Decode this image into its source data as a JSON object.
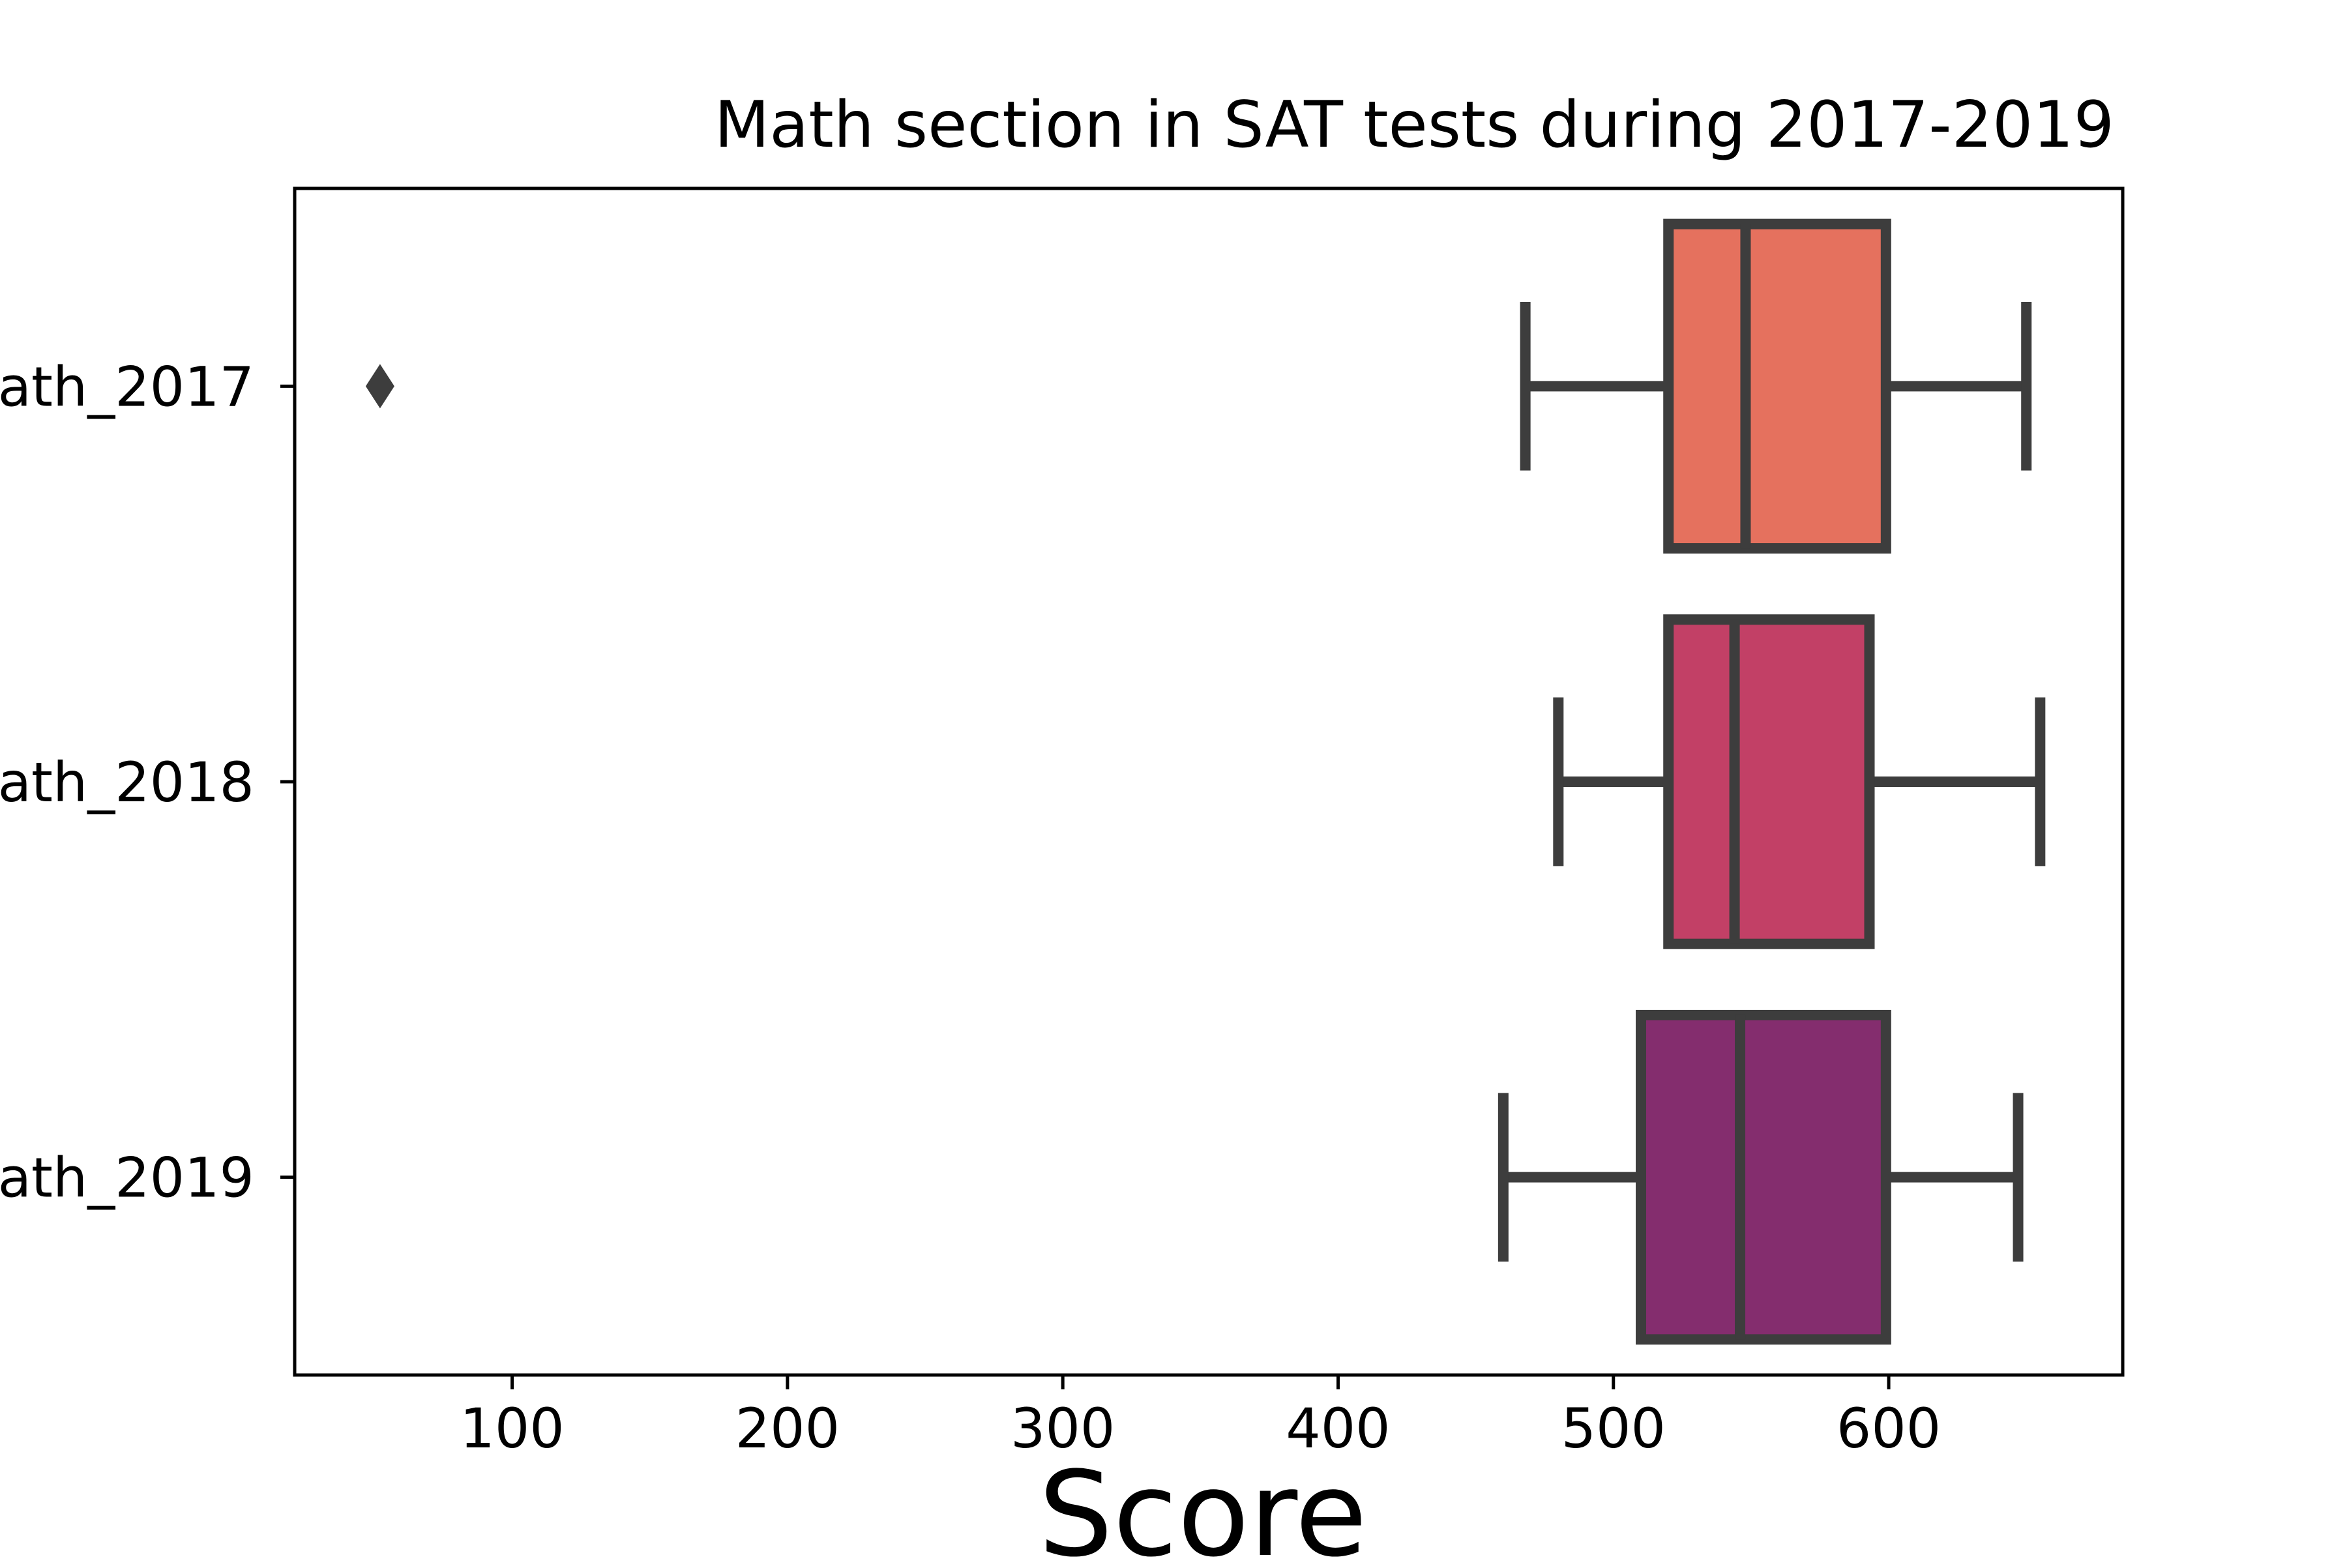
{
  "chart_data": {
    "type": "box",
    "orientation": "horizontal",
    "title": "Math section in SAT tests during 2017-2019",
    "xlabel": "Score",
    "ylabel": "",
    "xlim": [
      21,
      685
    ],
    "xticks": [
      100,
      200,
      300,
      400,
      500,
      600
    ],
    "grid": false,
    "legend": "none",
    "categories": [
      "ath_2017",
      "ath_2018",
      "ath_2019"
    ],
    "boxes": [
      {
        "label": "ath_2017",
        "whisker_low": 468,
        "q1": 520,
        "median": 548,
        "q3": 599,
        "whisker_high": 650,
        "outliers": [
          52
        ],
        "color": "#e5715e"
      },
      {
        "label": "ath_2018",
        "whisker_low": 480,
        "q1": 520,
        "median": 544,
        "q3": 593,
        "whisker_high": 655,
        "outliers": [],
        "color": "#c24066"
      },
      {
        "label": "ath_2019",
        "whisker_low": 460,
        "q1": 510,
        "median": 546,
        "q3": 599,
        "whisker_high": 647,
        "outliers": [],
        "color": "#842d6e"
      }
    ],
    "edge_color": "#3d3d3d"
  }
}
